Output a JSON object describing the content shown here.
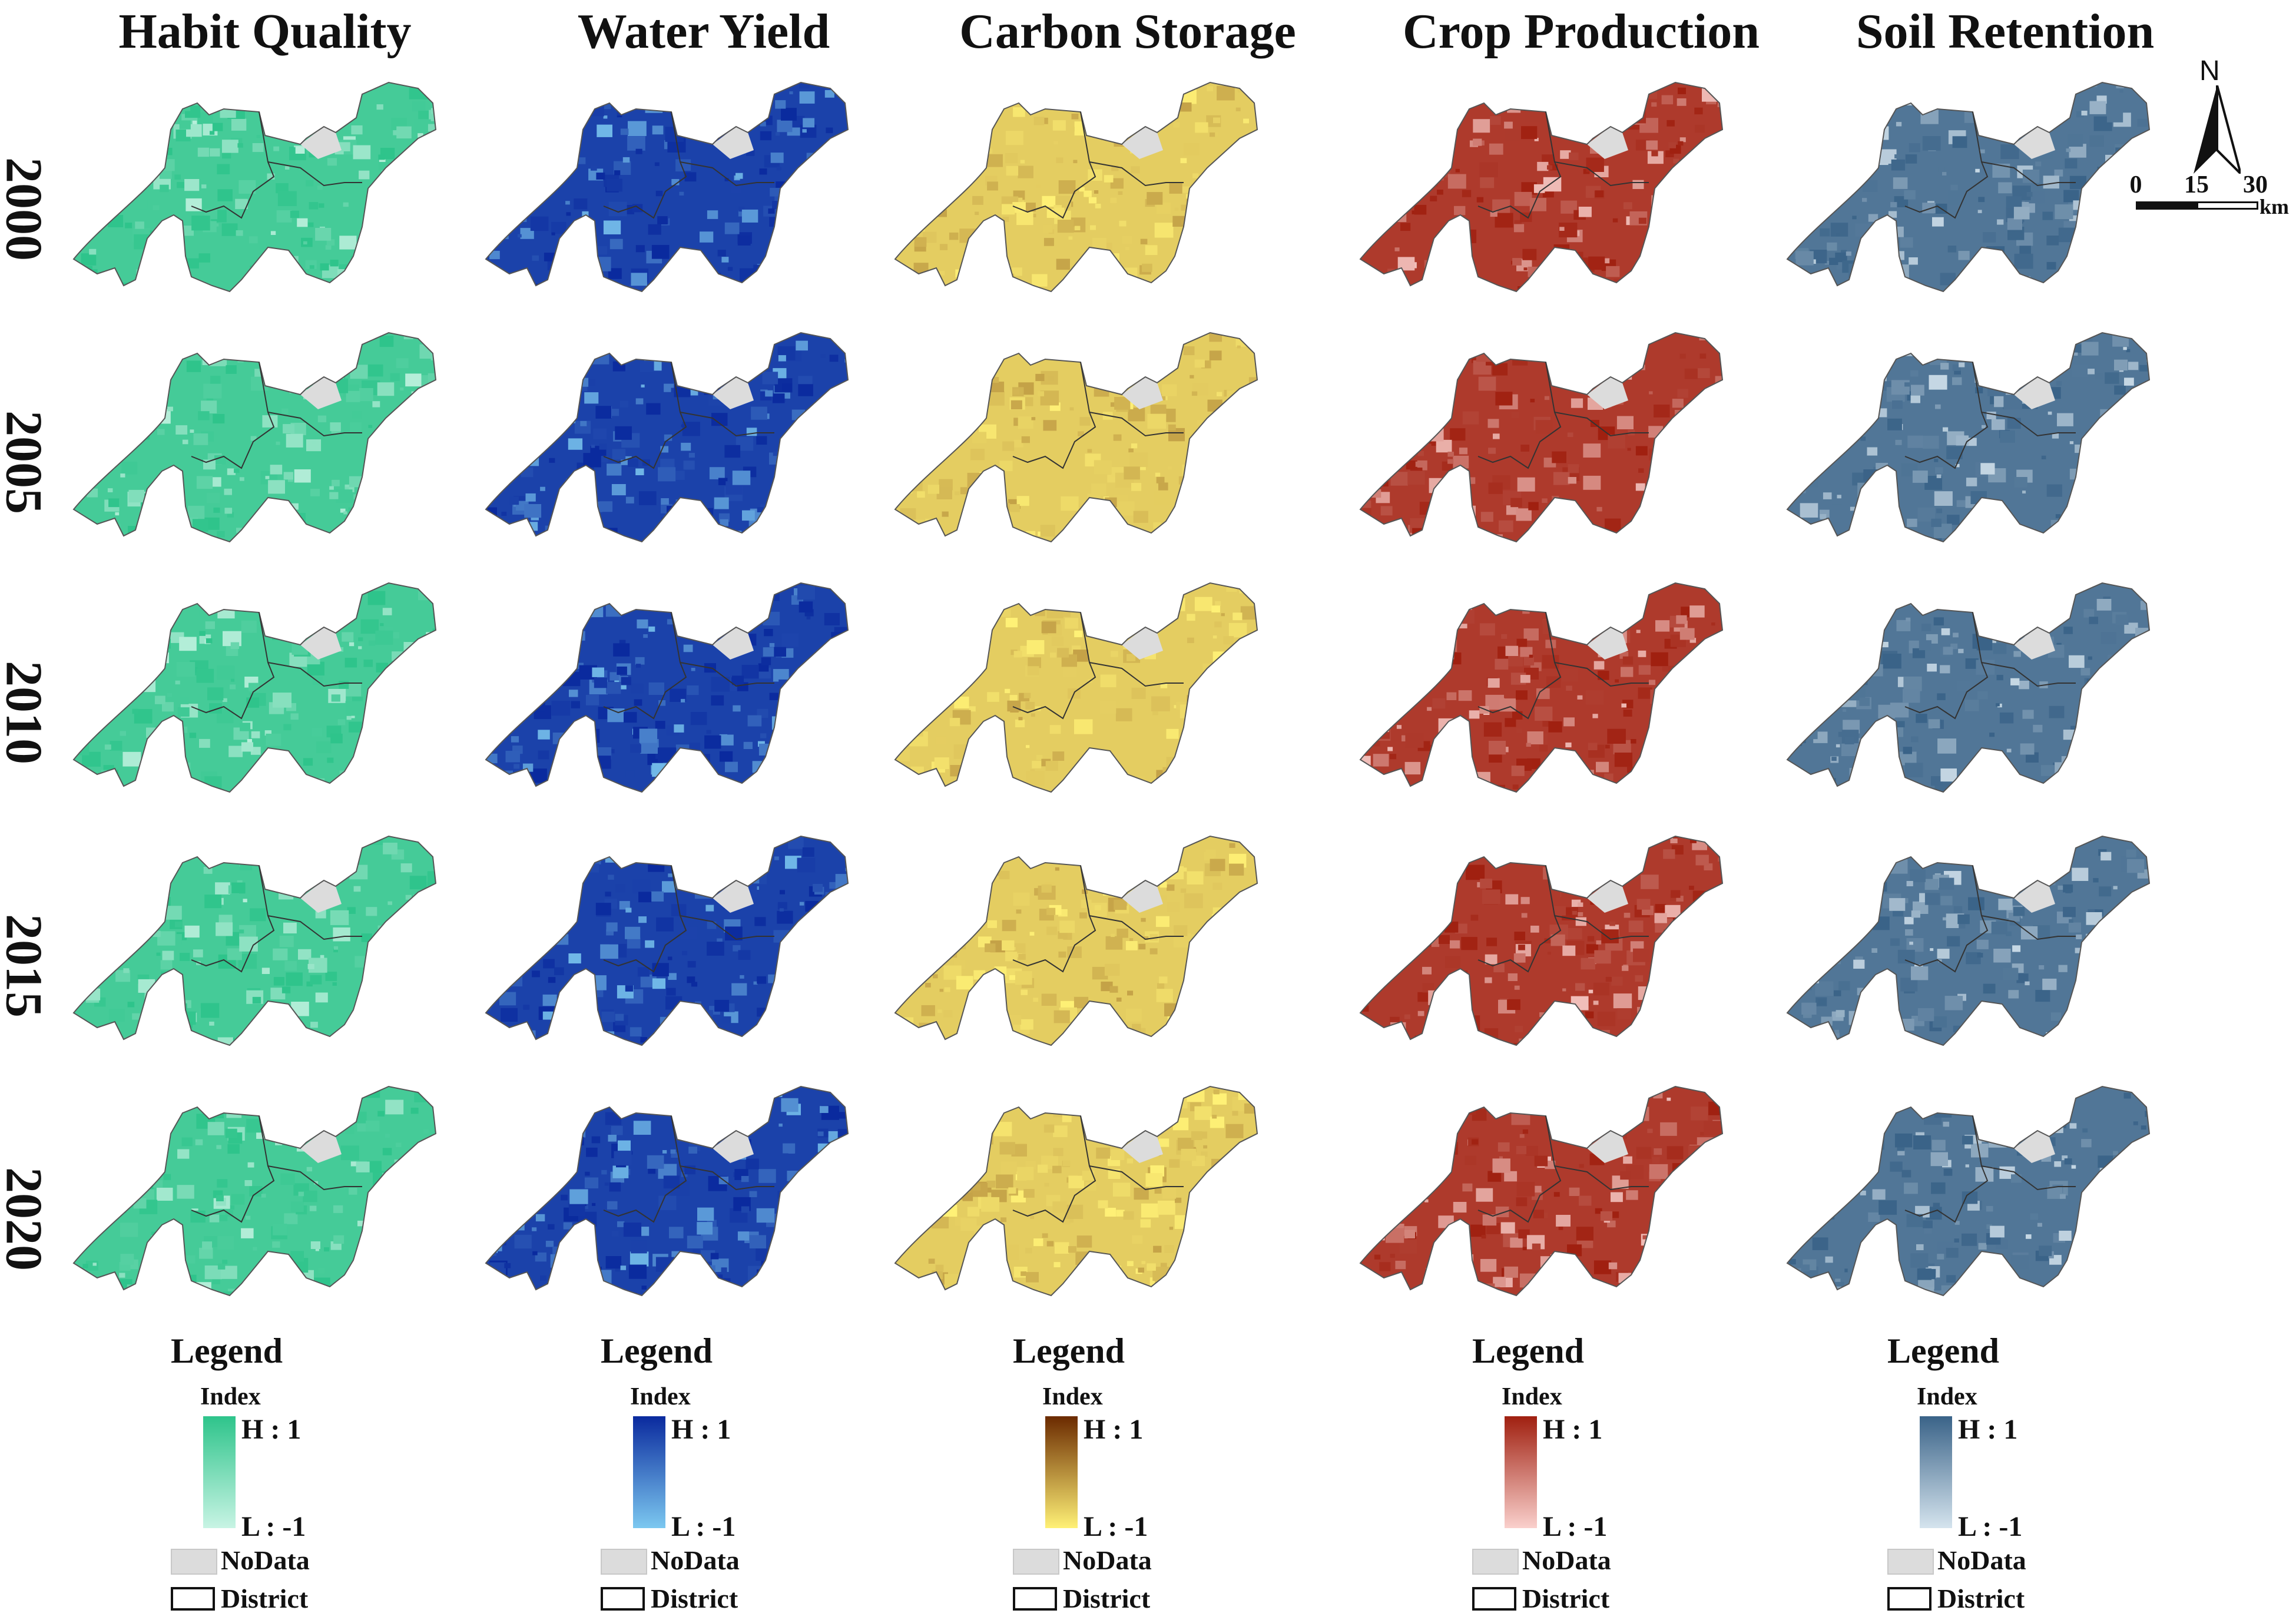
{
  "columns": [
    {
      "title": "Habit Quality",
      "high_color": "#2ec48b",
      "low_color": "#c8f4e4",
      "nodata_color": "#dcdcdc"
    },
    {
      "title": "Water Yield",
      "high_color": "#0a2a9e",
      "low_color": "#7cc8f0",
      "nodata_color": "#dcdcdc"
    },
    {
      "title": "Carbon Storage",
      "high_color": "#6b2a00",
      "low_color": "#fff176",
      "nodata_color": "#dcdcdc"
    },
    {
      "title": "Crop Production",
      "high_color": "#a02010",
      "low_color": "#fad0cc",
      "nodata_color": "#dcdcdc"
    },
    {
      "title": "Soil Retention",
      "high_color": "#3a6388",
      "low_color": "#d5e4ee",
      "nodata_color": "#dcdcdc"
    }
  ],
  "rows": [
    "2000",
    "2005",
    "2010",
    "2015",
    "2020"
  ],
  "legend": {
    "title": "Legend",
    "index_label": "Index",
    "high_label": "H : 1",
    "low_label": "L : -1",
    "nodata_label": "NoData",
    "district_label": "District"
  },
  "north_arrow": {
    "letter": "N",
    "icon": "north-arrow-icon"
  },
  "scale_bar": {
    "ticks": [
      "0",
      "15",
      "30"
    ],
    "unit": "km"
  }
}
